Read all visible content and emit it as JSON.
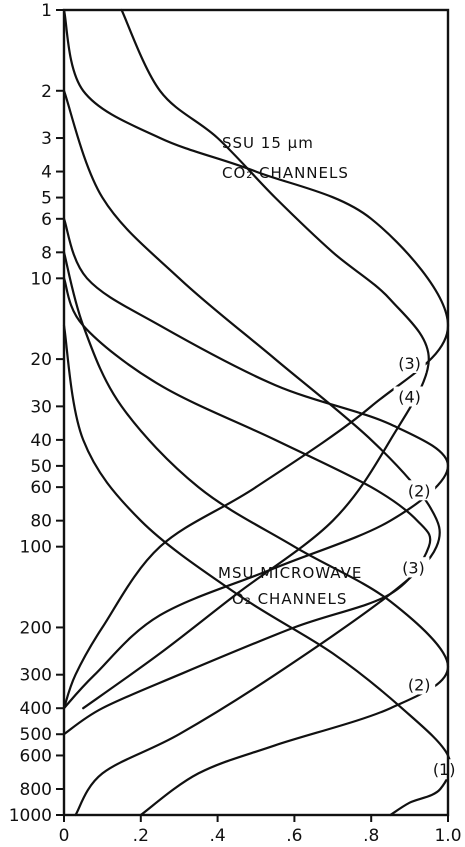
{
  "chart_data": {
    "type": "line",
    "title": "",
    "xlabel": "",
    "ylabel": "",
    "xlim": [
      0,
      1.0
    ],
    "ylim": [
      1000,
      1
    ],
    "y_scale": "log",
    "y_inverted": true,
    "grid": false,
    "legend": "none",
    "x_ticks": [
      0,
      0.2,
      0.4,
      0.6,
      0.8,
      1.0
    ],
    "x_tick_labels": [
      "0",
      ".2",
      ".4",
      ".6",
      ".8",
      "1.0"
    ],
    "y_ticks": [
      1,
      2,
      3,
      4,
      5,
      6,
      8,
      10,
      20,
      30,
      40,
      50,
      60,
      80,
      100,
      200,
      300,
      400,
      500,
      600,
      800,
      1000
    ],
    "y_tick_labels": [
      "1",
      "2",
      "3",
      "4",
      "5",
      "6",
      "8",
      "10",
      "20",
      "30",
      "40",
      "50",
      "60",
      "80",
      "100",
      "200",
      "300",
      "400",
      "500",
      "600",
      "800",
      "1000"
    ],
    "groups": [
      {
        "name": "SSU 15 μm",
        "name_line2": "CO₂ CHANNELS"
      },
      {
        "name": "MSU MICROWAVE",
        "name_line2": "O₂ CHANNELS"
      }
    ],
    "series": [
      {
        "name": "(3)",
        "group": "SSU",
        "label": "(3)",
        "x": [
          0.0,
          0.05,
          0.25,
          0.5,
          0.8,
          1.0,
          0.8,
          0.5,
          0.25,
          0.1,
          0.03,
          0.0
        ],
        "y": [
          1,
          2,
          3,
          4,
          6,
          15,
          30,
          60,
          100,
          200,
          300,
          400
        ]
      },
      {
        "name": "(2)",
        "group": "SSU",
        "label": "(2)",
        "x": [
          0.0,
          0.06,
          0.25,
          0.55,
          0.85,
          1.0,
          0.85,
          0.55,
          0.25,
          0.08,
          0.0
        ],
        "y": [
          6,
          10,
          15,
          25,
          35,
          50,
          80,
          120,
          180,
          300,
          400
        ]
      },
      {
        "name": "(1)",
        "group": "SSU",
        "label": "(1)",
        "x": [
          0.0,
          0.05,
          0.25,
          0.55,
          0.8,
          0.92,
          0.95,
          0.85,
          0.6,
          0.3,
          0.1,
          0.0
        ],
        "y": [
          10,
          15,
          25,
          40,
          60,
          80,
          100,
          150,
          200,
          300,
          400,
          500
        ]
      },
      {
        "name": "(4)",
        "group": "MSU",
        "label": "(4)",
        "x": [
          0.15,
          0.25,
          0.4,
          0.55,
          0.7,
          0.85,
          0.95,
          0.85,
          0.7,
          0.45,
          0.25,
          0.05
        ],
        "y": [
          1,
          2,
          3,
          5,
          8,
          12,
          20,
          40,
          80,
          150,
          250,
          400
        ]
      },
      {
        "name": "(3)",
        "group": "MSU",
        "label": "(3)",
        "x": [
          0.0,
          0.1,
          0.3,
          0.55,
          0.8,
          0.95,
          0.97,
          0.85,
          0.55,
          0.3,
          0.1,
          0.03
        ],
        "y": [
          2,
          5,
          10,
          20,
          40,
          70,
          100,
          150,
          300,
          500,
          700,
          1000
        ]
      },
      {
        "name": "(2)",
        "group": "MSU",
        "label": "(2)",
        "x": [
          0.0,
          0.05,
          0.15,
          0.35,
          0.6,
          0.85,
          1.0,
          0.85,
          0.55,
          0.35,
          0.2
        ],
        "y": [
          8,
          15,
          30,
          60,
          100,
          160,
          280,
          400,
          550,
          700,
          1000
        ]
      },
      {
        "name": "(1)",
        "group": "MSU",
        "label": "(1)",
        "x": [
          0.0,
          0.05,
          0.2,
          0.45,
          0.7,
          0.88,
          1.0,
          0.98,
          0.9,
          0.85
        ],
        "y": [
          15,
          40,
          80,
          150,
          250,
          400,
          600,
          800,
          900,
          1000
        ]
      }
    ]
  }
}
